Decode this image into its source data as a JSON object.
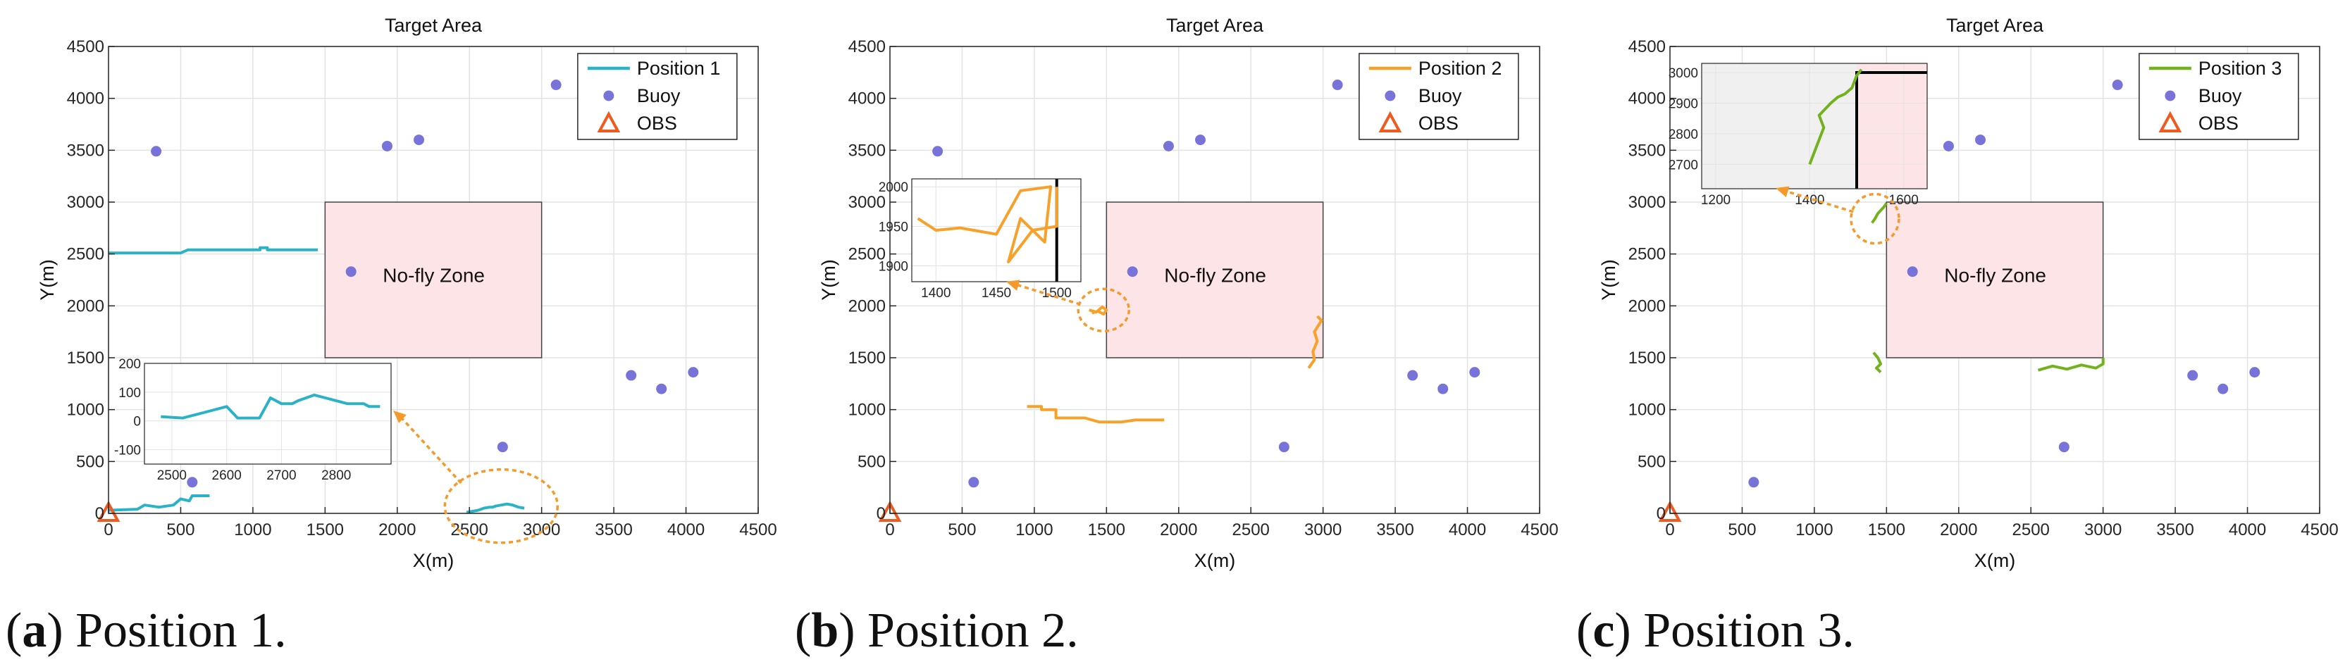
{
  "chart_data": [
    {
      "type": "scatter",
      "title": "Target Area",
      "xlabel": "X(m)",
      "ylabel": "Y(m)",
      "xlim": [
        0,
        4500
      ],
      "ylim": [
        0,
        4500
      ],
      "xticks": [
        0,
        500,
        1000,
        1500,
        2000,
        2500,
        3000,
        3500,
        4000,
        4500
      ],
      "yticks": [
        0,
        500,
        1000,
        1500,
        2000,
        2500,
        3000,
        3500,
        4000,
        4500
      ],
      "grid": true,
      "legend_position": "top-right",
      "no_fly_zone": {
        "label": "No-fly Zone",
        "x": [
          1500,
          3000
        ],
        "y": [
          1500,
          3000
        ]
      },
      "buoys": [
        [
          330,
          3490
        ],
        [
          1930,
          3540
        ],
        [
          2150,
          3600
        ],
        [
          3100,
          4130
        ],
        [
          1680,
          2330
        ],
        [
          3620,
          1330
        ],
        [
          3830,
          1200
        ],
        [
          4050,
          1360
        ],
        [
          2730,
          640
        ],
        [
          580,
          300
        ]
      ],
      "obs": [
        0,
        0
      ],
      "series": [
        {
          "name": "Position 1",
          "color": "#2ab2c8",
          "paths": [
            [
              [
                0,
                2510
              ],
              [
                500,
                2510
              ],
              [
                550,
                2540
              ],
              [
                1050,
                2540
              ],
              [
                1050,
                2560
              ],
              [
                1100,
                2560
              ],
              [
                1100,
                2540
              ],
              [
                1450,
                2540
              ]
            ],
            [
              [
                0,
                30
              ],
              [
                200,
                40
              ],
              [
                250,
                80
              ],
              [
                350,
                60
              ],
              [
                450,
                80
              ],
              [
                500,
                140
              ],
              [
                560,
                120
              ],
              [
                580,
                170
              ],
              [
                700,
                170
              ]
            ],
            [
              [
                2480,
                10
              ],
              [
                2520,
                20
              ],
              [
                2560,
                30
              ],
              [
                2600,
                50
              ],
              [
                2640,
                60
              ],
              [
                2660,
                60
              ],
              [
                2680,
                70
              ],
              [
                2720,
                80
              ],
              [
                2760,
                90
              ],
              [
                2800,
                80
              ],
              [
                2840,
                60
              ],
              [
                2880,
                50
              ]
            ]
          ]
        },
        {
          "name": "Position 2",
          "color": "#f7a12a",
          "paths": [
            [
              [
                950,
                1030
              ],
              [
                1050,
                1030
              ],
              [
                1050,
                1000
              ],
              [
                1150,
                1000
              ],
              [
                1150,
                920
              ],
              [
                1350,
                920
              ],
              [
                1450,
                880
              ],
              [
                1600,
                880
              ],
              [
                1700,
                900
              ],
              [
                1900,
                900
              ]
            ],
            [
              [
                1380,
                1960
              ],
              [
                1430,
                1940
              ],
              [
                1470,
                1990
              ],
              [
                1500,
                1960
              ],
              [
                1480,
                1920
              ],
              [
                1440,
                1950
              ],
              [
                1400,
                1930
              ]
            ],
            [
              [
                2900,
                1400
              ],
              [
                2940,
                1480
              ],
              [
                2930,
                1560
              ],
              [
                2960,
                1660
              ],
              [
                2940,
                1750
              ],
              [
                2990,
                1860
              ],
              [
                2960,
                1900
              ]
            ]
          ]
        },
        {
          "name": "Position 3",
          "color": "#72b21f",
          "paths": [
            [
              [
                1410,
                1550
              ],
              [
                1440,
                1500
              ],
              [
                1460,
                1440
              ],
              [
                1430,
                1400
              ],
              [
                1460,
                1360
              ]
            ],
            [
              [
                1400,
                2800
              ],
              [
                1420,
                2840
              ],
              [
                1440,
                2890
              ],
              [
                1460,
                2920
              ],
              [
                1480,
                2950
              ],
              [
                1500,
                2990
              ]
            ],
            [
              [
                2550,
                1380
              ],
              [
                2650,
                1420
              ],
              [
                2750,
                1390
              ],
              [
                2850,
                1430
              ],
              [
                2950,
                1400
              ],
              [
                3000,
                1440
              ],
              [
                3000,
                1500
              ]
            ]
          ]
        }
      ],
      "insets": [
        {
          "panel": 0,
          "xlim": [
            2450,
            2900
          ],
          "ylim": [
            -150,
            200
          ],
          "xticks": [
            2500,
            2600,
            2700,
            2800
          ],
          "yticks": [
            -100,
            0,
            100,
            200
          ],
          "path": [
            [
              2480,
              15
            ],
            [
              2520,
              10
            ],
            [
              2560,
              30
            ],
            [
              2600,
              50
            ],
            [
              2620,
              10
            ],
            [
              2640,
              10
            ],
            [
              2660,
              10
            ],
            [
              2680,
              80
            ],
            [
              2700,
              60
            ],
            [
              2720,
              60
            ],
            [
              2730,
              70
            ],
            [
              2760,
              90
            ],
            [
              2780,
              80
            ],
            [
              2800,
              70
            ],
            [
              2820,
              60
            ],
            [
              2850,
              60
            ],
            [
              2860,
              50
            ],
            [
              2880,
              50
            ]
          ]
        },
        {
          "panel": 1,
          "xlim": [
            1380,
            1520
          ],
          "ylim": [
            1880,
            2010
          ],
          "xticks": [
            1400,
            1450,
            1500
          ],
          "yticks": [
            1900,
            1950,
            2000
          ],
          "path": [
            [
              1385,
              1960
            ],
            [
              1400,
              1945
            ],
            [
              1420,
              1948
            ],
            [
              1450,
              1940
            ],
            [
              1470,
              1995
            ],
            [
              1495,
              2000
            ],
            [
              1490,
              1930
            ],
            [
              1470,
              1960
            ],
            [
              1460,
              1905
            ],
            [
              1480,
              1945
            ],
            [
              1500,
              1950
            ],
            [
              1500,
              2000
            ]
          ]
        },
        {
          "panel": 2,
          "xlim": [
            1170,
            1650
          ],
          "ylim": [
            2620,
            3030
          ],
          "xticks": [
            1200,
            1400,
            1600
          ],
          "yticks": [
            2700,
            2800,
            2900,
            3000
          ],
          "path": [
            [
              1400,
              2700
            ],
            [
              1415,
              2760
            ],
            [
              1430,
              2820
            ],
            [
              1420,
              2860
            ],
            [
              1445,
              2900
            ],
            [
              1460,
              2920
            ],
            [
              1475,
              2930
            ],
            [
              1490,
              2950
            ],
            [
              1500,
              2990
            ],
            [
              1510,
              3010
            ]
          ]
        }
      ],
      "captions": [
        {
          "letter": "a",
          "text": ") Position 1."
        },
        {
          "letter": "b",
          "text": ") Position 2."
        },
        {
          "letter": "c",
          "text": ") Position 3."
        }
      ],
      "legend": {
        "buoy": "Buoy",
        "obs": "OBS"
      },
      "colors": {
        "no_fly_fill": "#fde4e7",
        "buoy": "#7773d9",
        "obs": "#ef5a1f",
        "arrow": "#f59a2a"
      }
    }
  ]
}
